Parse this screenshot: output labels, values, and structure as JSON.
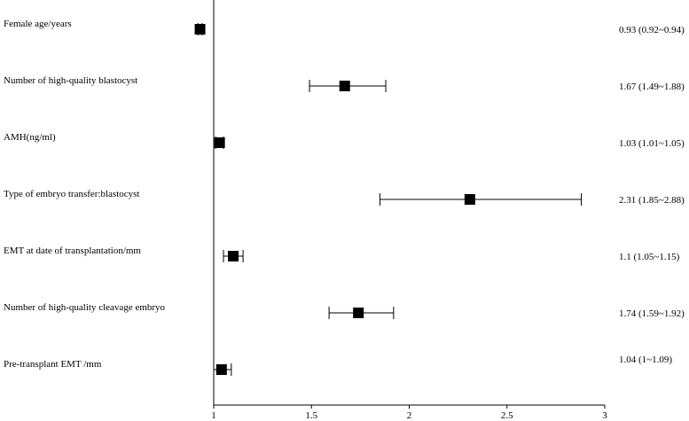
{
  "chart_data": {
    "type": "forest",
    "title": "",
    "xlabel": "",
    "ylabel": "",
    "xlim": [
      0.9,
      3.0
    ],
    "reference_line": 1,
    "x_ticks": [
      "1",
      "1.5",
      "2",
      "2.5",
      "3"
    ],
    "x_tick_values": [
      1,
      1.5,
      2,
      2.5,
      3
    ],
    "rows": [
      {
        "label": "Female age/years",
        "or": 0.93,
        "lo": 0.92,
        "hi": 0.94,
        "ci_text": "0.93 (0.92~0.94)"
      },
      {
        "label": "Number of high-quality blastocyst",
        "or": 1.67,
        "lo": 1.49,
        "hi": 1.88,
        "ci_text": "1.67 (1.49~1.88)"
      },
      {
        "label": "AMH(ng/ml)",
        "or": 1.03,
        "lo": 1.01,
        "hi": 1.05,
        "ci_text": "1.03 (1.01~1.05)"
      },
      {
        "label": "Type of embryo transfer:blastocyst",
        "or": 2.31,
        "lo": 1.85,
        "hi": 2.88,
        "ci_text": "2.31 (1.85~2.88)"
      },
      {
        "label": "EMT at date of transplantation/mm",
        "or": 1.1,
        "lo": 1.05,
        "hi": 1.15,
        "ci_text": "1.1 (1.05~1.15)"
      },
      {
        "label": "Number of high-quality cleavage embryo",
        "or": 1.74,
        "lo": 1.59,
        "hi": 1.92,
        "ci_text": "1.74 (1.59~1.92)"
      },
      {
        "label": "Pre-transplant EMT /mm",
        "or": 1.04,
        "lo": 1.0,
        "hi": 1.09,
        "ci_text": "1.04 (1~1.09)"
      }
    ]
  }
}
